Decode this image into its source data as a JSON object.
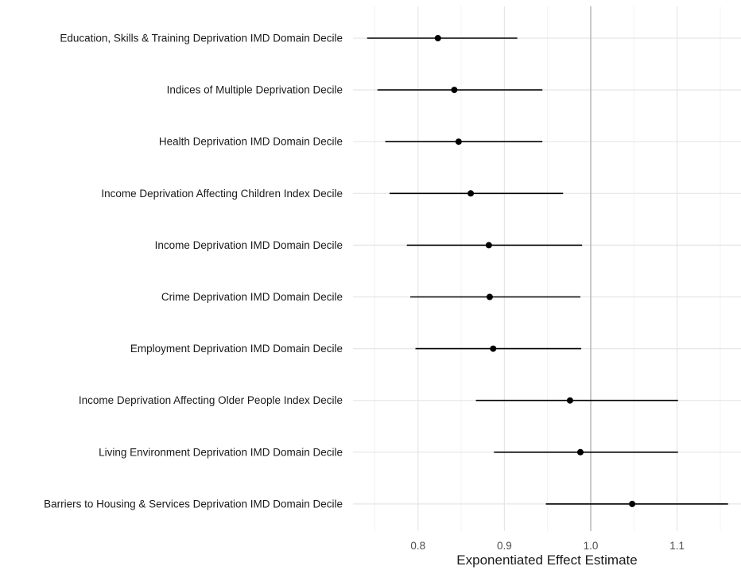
{
  "chart_data": {
    "type": "forest",
    "title": "",
    "xlabel": "Exponentiated Effect Estimate",
    "ylabel": "",
    "xlim": [
      0.735,
      1.165
    ],
    "xticks": [
      0.8,
      0.9,
      1.0,
      1.1
    ],
    "xtick_labels": [
      "0.8",
      "0.9",
      "1.0",
      "1.1"
    ],
    "reference_line": 1.0,
    "grid": true,
    "rows": [
      {
        "label": "Education, Skills & Training Deprivation IMD Domain Decile",
        "estimate": 0.823,
        "lower": 0.741,
        "upper": 0.915
      },
      {
        "label": "Indices of Multiple Deprivation Decile",
        "estimate": 0.842,
        "lower": 0.753,
        "upper": 0.944
      },
      {
        "label": "Health Deprivation IMD Domain Decile",
        "estimate": 0.847,
        "lower": 0.762,
        "upper": 0.944
      },
      {
        "label": "Income Deprivation Affecting Children Index Decile",
        "estimate": 0.861,
        "lower": 0.767,
        "upper": 0.968
      },
      {
        "label": "Income Deprivation IMD Domain Decile",
        "estimate": 0.882,
        "lower": 0.787,
        "upper": 0.99
      },
      {
        "label": "Crime Deprivation IMD Domain Decile",
        "estimate": 0.883,
        "lower": 0.791,
        "upper": 0.988
      },
      {
        "label": "Employment Deprivation IMD Domain Decile",
        "estimate": 0.887,
        "lower": 0.797,
        "upper": 0.989
      },
      {
        "label": "Income Deprivation Affecting Older People Index Decile",
        "estimate": 0.976,
        "lower": 0.867,
        "upper": 1.101
      },
      {
        "label": "Living Environment Deprivation IMD Domain Decile",
        "estimate": 0.988,
        "lower": 0.888,
        "upper": 1.101
      },
      {
        "label": "Barriers to Housing & Services Deprivation IMD Domain Decile",
        "estimate": 1.048,
        "lower": 0.948,
        "upper": 1.159
      }
    ],
    "colors": {
      "point": "#000000",
      "interval": "#000000",
      "grid_major": "#e6e6e6",
      "grid_minor": "#f2f2f2",
      "reference_line": "#bdbdbd",
      "background": "#ffffff"
    }
  }
}
